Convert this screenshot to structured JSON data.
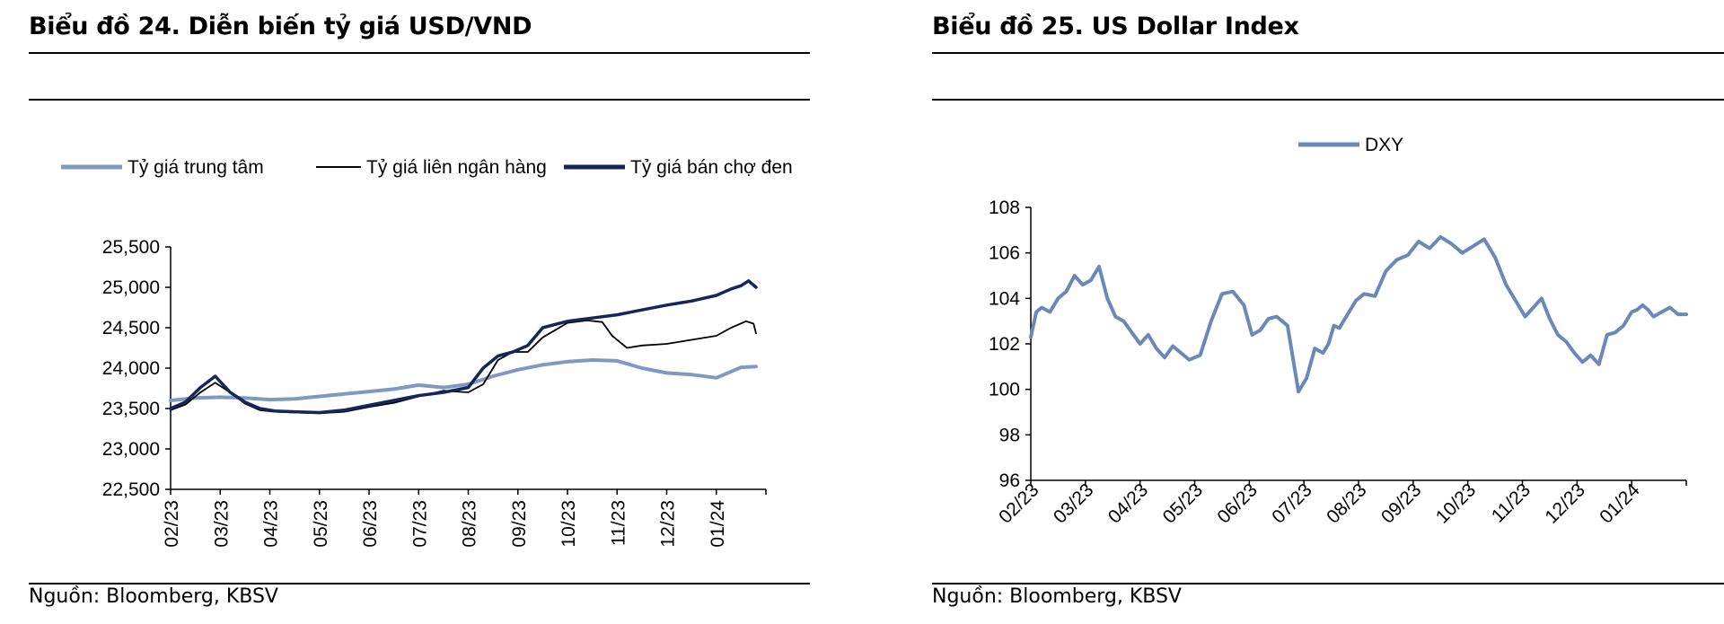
{
  "left": {
    "title": "Biểu đồ 24. Diễn biến tỷ giá USD/VND",
    "source": "Nguồn: Bloomberg, KBSV"
  },
  "right": {
    "title": "Biểu đồ 25. US Dollar Index",
    "source": "Nguồn: Bloomberg, KBSV"
  },
  "colors": {
    "central": "#7f99c3",
    "interbank": "#000000",
    "blackmarket": "#14275a",
    "dxy": "#6a89b8",
    "axis": "#000000"
  },
  "chart_data": [
    {
      "type": "line",
      "title": "Biểu đồ 24. Diễn biến tỷ giá USD/VND",
      "xlabel": "",
      "ylabel": "",
      "ylim": [
        22500,
        25500
      ],
      "ytick_labels": [
        "22,500",
        "23,000",
        "23,500",
        "24,000",
        "24,500",
        "25,000",
        "25,500"
      ],
      "yticks": [
        22500,
        23000,
        23500,
        24000,
        24500,
        25000,
        25500
      ],
      "xtick_labels": [
        "02/23",
        "03/23",
        "04/23",
        "05/23",
        "06/23",
        "07/23",
        "08/23",
        "09/23",
        "10/23",
        "11/23",
        "12/23",
        "01/24"
      ],
      "x_range": [
        0,
        12
      ],
      "legend": "top",
      "grid": false,
      "series": [
        {
          "name": "Tỷ giá trung  tâm",
          "x": [
            0,
            0.5,
            1,
            1.5,
            2,
            2.5,
            3,
            3.5,
            4,
            4.5,
            5,
            5.5,
            6,
            6.5,
            7,
            7.5,
            8,
            8.5,
            9,
            9.5,
            10,
            10.5,
            11,
            11.5,
            11.8
          ],
          "values": [
            23600,
            23630,
            23640,
            23630,
            23610,
            23620,
            23650,
            23680,
            23710,
            23740,
            23790,
            23760,
            23800,
            23900,
            23980,
            24040,
            24080,
            24100,
            24090,
            24000,
            23940,
            23920,
            23880,
            24010,
            24020
          ]
        },
        {
          "name": "Tỷ giá liên ngân hàng",
          "x": [
            0,
            0.3,
            0.6,
            0.9,
            1.2,
            1.5,
            1.8,
            2.1,
            2.5,
            3,
            3.5,
            4,
            4.5,
            5,
            5.5,
            6,
            6.3,
            6.6,
            6.9,
            7.2,
            7.5,
            8,
            8.4,
            8.7,
            8.9,
            9.2,
            9.5,
            10,
            10.5,
            11,
            11.3,
            11.6,
            11.75,
            11.8
          ],
          "values": [
            23480,
            23550,
            23700,
            23820,
            23700,
            23560,
            23480,
            23460,
            23450,
            23440,
            23460,
            23520,
            23570,
            23650,
            23720,
            23700,
            23800,
            24100,
            24200,
            24200,
            24380,
            24560,
            24590,
            24570,
            24400,
            24250,
            24280,
            24300,
            24350,
            24400,
            24500,
            24580,
            24550,
            24430
          ]
        },
        {
          "name": "Tỷ giá bán chợ đen",
          "x": [
            0,
            0.3,
            0.6,
            0.9,
            1.2,
            1.5,
            1.8,
            2.1,
            2.5,
            3,
            3.5,
            4,
            4.5,
            5,
            5.5,
            6,
            6.3,
            6.6,
            6.9,
            7.2,
            7.5,
            8,
            8.5,
            9,
            9.5,
            10,
            10.5,
            11,
            11.3,
            11.5,
            11.65,
            11.8
          ],
          "values": [
            23500,
            23580,
            23760,
            23900,
            23700,
            23580,
            23500,
            23470,
            23460,
            23450,
            23480,
            23540,
            23600,
            23660,
            23700,
            23760,
            24000,
            24150,
            24200,
            24280,
            24500,
            24580,
            24620,
            24660,
            24720,
            24780,
            24830,
            24900,
            24980,
            25020,
            25080,
            25000
          ]
        }
      ]
    },
    {
      "type": "line",
      "title": "Biểu đồ 25. US Dollar Index",
      "xlabel": "",
      "ylabel": "",
      "ylim": [
        96,
        108
      ],
      "ytick_labels": [
        "96",
        "98",
        "100",
        "102",
        "104",
        "106",
        "108"
      ],
      "yticks": [
        96,
        98,
        100,
        102,
        104,
        106,
        108
      ],
      "xtick_labels": [
        "02/23",
        "03/23",
        "04/23",
        "05/23",
        "06/23",
        "07/23",
        "08/23",
        "09/23",
        "10/23",
        "11/23",
        "12/23",
        "01/24"
      ],
      "x_range": [
        0,
        12
      ],
      "legend": "top",
      "grid": false,
      "series": [
        {
          "name": "DXY",
          "x": [
            0,
            0.1,
            0.2,
            0.35,
            0.5,
            0.65,
            0.8,
            0.95,
            1.1,
            1.25,
            1.4,
            1.55,
            1.7,
            1.85,
            2.0,
            2.15,
            2.3,
            2.45,
            2.6,
            2.75,
            2.9,
            3.1,
            3.3,
            3.5,
            3.7,
            3.9,
            4.05,
            4.2,
            4.35,
            4.5,
            4.7,
            4.9,
            5.05,
            5.2,
            5.35,
            5.45,
            5.55,
            5.65,
            5.8,
            5.95,
            6.1,
            6.3,
            6.5,
            6.7,
            6.9,
            7.1,
            7.3,
            7.5,
            7.7,
            7.9,
            8.1,
            8.3,
            8.5,
            8.7,
            8.9,
            9.05,
            9.2,
            9.35,
            9.5,
            9.65,
            9.8,
            9.95,
            10.1,
            10.25,
            10.4,
            10.55,
            10.7,
            10.85,
            11.0,
            11.1,
            11.2,
            11.3,
            11.4,
            11.55,
            11.7,
            11.85,
            12.0
          ],
          "values": [
            102.3,
            103.4,
            103.6,
            103.4,
            104.0,
            104.3,
            105.0,
            104.6,
            104.8,
            105.4,
            104.0,
            103.2,
            103.0,
            102.5,
            102.0,
            102.4,
            101.8,
            101.4,
            101.9,
            101.6,
            101.3,
            101.5,
            103.0,
            104.2,
            104.3,
            103.7,
            102.4,
            102.6,
            103.1,
            103.2,
            102.8,
            99.9,
            100.5,
            101.8,
            101.6,
            102.0,
            102.8,
            102.7,
            103.3,
            103.9,
            104.2,
            104.1,
            105.2,
            105.7,
            105.9,
            106.5,
            106.2,
            106.7,
            106.4,
            106.0,
            106.3,
            106.6,
            105.8,
            104.6,
            103.8,
            103.2,
            103.6,
            104.0,
            103.1,
            102.4,
            102.1,
            101.6,
            101.2,
            101.5,
            101.1,
            102.4,
            102.5,
            102.8,
            103.4,
            103.5,
            103.7,
            103.5,
            103.2,
            103.4,
            103.6,
            103.3,
            103.3
          ]
        }
      ]
    }
  ]
}
